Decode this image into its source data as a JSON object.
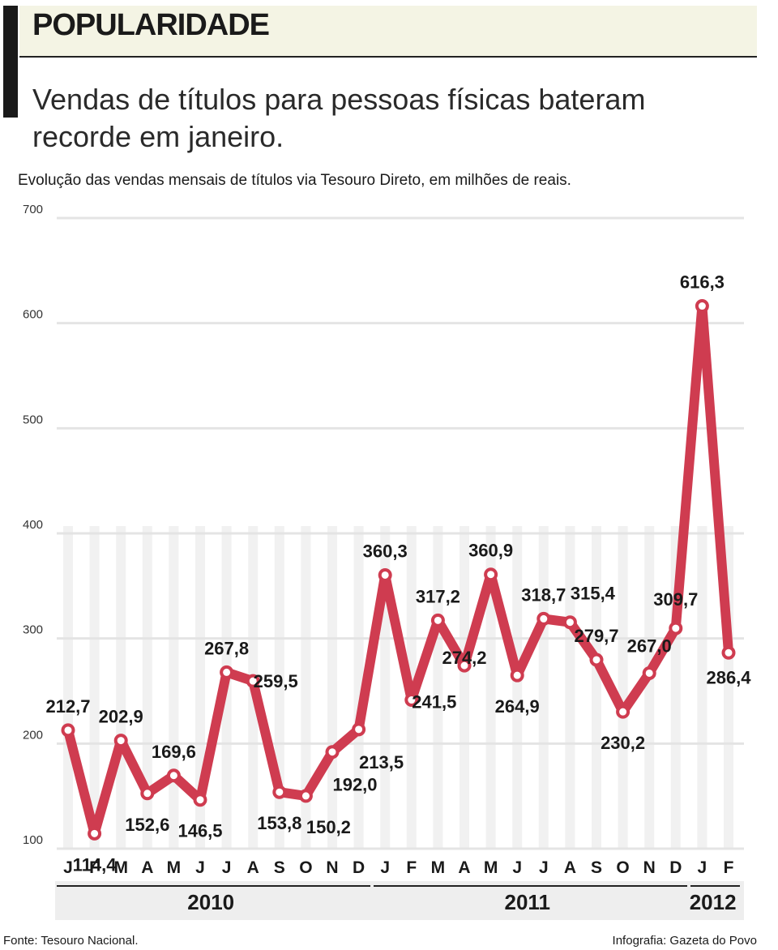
{
  "header": {
    "title": "POPULARIDADE",
    "subtitle": "Vendas de títulos para pessoas físicas bateram recorde em janeiro.",
    "description": "Evolução das vendas mensais de títulos via Tesouro Direto, em milhões de reais."
  },
  "footer": {
    "source": "Fonte: Tesouro Nacional.",
    "credit": "Infografia: Gazeta do Povo"
  },
  "chart_data": {
    "type": "line",
    "title": "",
    "xlabel": "",
    "ylabel": "",
    "ylim": [
      100,
      700
    ],
    "yticks": [
      100,
      200,
      300,
      400,
      500,
      600,
      700
    ],
    "grid": true,
    "categories": [
      "J",
      "F",
      "M",
      "A",
      "M",
      "J",
      "J",
      "A",
      "S",
      "O",
      "N",
      "D",
      "J",
      "F",
      "M",
      "A",
      "M",
      "J",
      "J",
      "A",
      "S",
      "O",
      "N",
      "D",
      "J",
      "F"
    ],
    "years": [
      {
        "label": "2010",
        "start": 0,
        "end": 11
      },
      {
        "label": "2011",
        "start": 12,
        "end": 23
      },
      {
        "label": "2012",
        "start": 24,
        "end": 25
      }
    ],
    "series": [
      {
        "values": [
          212.7,
          114.4,
          202.9,
          152.6,
          169.6,
          146.5,
          267.8,
          259.5,
          153.8,
          150.2,
          192.0,
          213.5,
          360.3,
          241.5,
          317.2,
          274.2,
          360.9,
          264.9,
          318.7,
          315.4,
          279.7,
          230.2,
          267.0,
          309.7,
          616.3,
          286.4
        ],
        "labels": [
          "212,7",
          "114,4",
          "202,9",
          "152,6",
          "169,6",
          "146,5",
          "267,8",
          "259,5",
          "153,8",
          "150,2",
          "192,0",
          "213,5",
          "360,3",
          "241,5",
          "317,2",
          "274,2",
          "360,9",
          "264,9",
          "318,7",
          "315,4",
          "279,7",
          "230,2",
          "267,0",
          "309,7",
          "616,3",
          "286,4"
        ]
      }
    ],
    "colors": {
      "line": "#cf3c50",
      "grid": "#e4e4e4",
      "marker_fill": "#ffffff"
    }
  }
}
